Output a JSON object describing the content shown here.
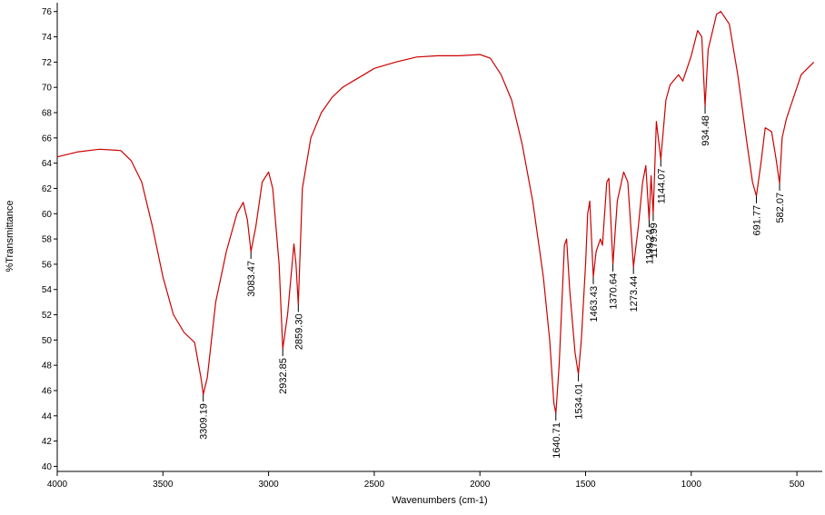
{
  "chart_data": {
    "type": "line",
    "xlabel": "Wavenumbers (cm-1)",
    "ylabel": "%Transmittance",
    "color": "#cc0000",
    "xlim": [
      4000,
      380
    ],
    "ylim": [
      39.6,
      76.7
    ],
    "xticks": [
      4000,
      3500,
      3000,
      2500,
      2000,
      1500,
      1000,
      500
    ],
    "yticks": [
      40,
      42,
      44,
      46,
      48,
      50,
      52,
      54,
      56,
      58,
      60,
      62,
      64,
      66,
      68,
      70,
      72,
      74,
      76
    ],
    "x": [
      4000,
      3900,
      3800,
      3700,
      3650,
      3600,
      3550,
      3500,
      3450,
      3400,
      3350,
      3320,
      3309.19,
      3290,
      3250,
      3200,
      3150,
      3120,
      3100,
      3083.47,
      3060,
      3030,
      3000,
      2980,
      2950,
      2932.85,
      2910,
      2880,
      2870,
      2859.3,
      2840,
      2800,
      2750,
      2700,
      2650,
      2600,
      2550,
      2500,
      2400,
      2300,
      2200,
      2100,
      2000,
      1950,
      1900,
      1850,
      1800,
      1750,
      1700,
      1670,
      1650,
      1640.71,
      1625,
      1600,
      1590,
      1575,
      1550,
      1534.01,
      1520,
      1500,
      1490,
      1480,
      1463.43,
      1450,
      1430,
      1420,
      1400,
      1390,
      1370.64,
      1350,
      1320,
      1300,
      1273.44,
      1250,
      1230,
      1215,
      1199.24,
      1190,
      1179.99,
      1165,
      1144.07,
      1120,
      1100,
      1060,
      1040,
      1000,
      970,
      950,
      934.48,
      920,
      880,
      860,
      820,
      780,
      740,
      710,
      691.77,
      670,
      650,
      620,
      600,
      582.07,
      570,
      550,
      530,
      500,
      480,
      450,
      420
    ],
    "values": [
      64.5,
      64.9,
      65.1,
      65.0,
      64.2,
      62.5,
      59,
      55,
      52,
      50.6,
      49.8,
      47,
      45.7,
      47,
      53,
      57,
      60,
      60.9,
      59.5,
      57,
      59,
      62.5,
      63.3,
      62,
      56,
      49.3,
      52,
      57.6,
      56,
      52.8,
      62,
      66,
      68,
      69.2,
      70,
      70.5,
      71,
      71.5,
      72,
      72.4,
      72.5,
      72.5,
      72.6,
      72.3,
      71,
      69,
      65.5,
      61,
      55,
      50,
      45,
      44.2,
      48,
      57.5,
      58,
      54,
      49,
      47.3,
      50,
      56,
      60,
      61,
      55,
      57,
      58,
      57.5,
      62.5,
      62.8,
      56,
      61,
      63.3,
      62.5,
      55.8,
      59,
      62.5,
      63.8,
      59.5,
      63,
      60,
      67.3,
      64.3,
      69,
      70.2,
      71,
      70.5,
      72.5,
      74.5,
      74,
      68.5,
      73,
      75.8,
      76,
      75,
      71,
      66,
      62.5,
      61.4,
      64,
      66.8,
      66.5,
      64.5,
      62.4,
      66,
      67.5,
      68.5,
      70,
      71,
      71.5,
      72
    ],
    "annotations": [
      {
        "text": "3309.19",
        "x": 3309.19,
        "y": 45.7
      },
      {
        "text": "3083.47",
        "x": 3083.47,
        "y": 57
      },
      {
        "text": "2932.85",
        "x": 2932.85,
        "y": 49.3
      },
      {
        "text": "2859.30",
        "x": 2859.3,
        "y": 52.8
      },
      {
        "text": "1640.71",
        "x": 1640.71,
        "y": 44.2
      },
      {
        "text": "1534.01",
        "x": 1534.01,
        "y": 47.3
      },
      {
        "text": "1463.43",
        "x": 1463.43,
        "y": 55
      },
      {
        "text": "1370.64",
        "x": 1370.64,
        "y": 56
      },
      {
        "text": "1273.44",
        "x": 1273.44,
        "y": 55.8
      },
      {
        "text": "1199.24",
        "x": 1199.24,
        "y": 59.5
      },
      {
        "text": "1179.99",
        "x": 1179.99,
        "y": 60
      },
      {
        "text": "1144.07",
        "x": 1144.07,
        "y": 64.3
      },
      {
        "text": "934.48",
        "x": 934.48,
        "y": 68.5
      },
      {
        "text": "691.77",
        "x": 691.77,
        "y": 61.4
      },
      {
        "text": "582.07",
        "x": 582.07,
        "y": 62.4
      }
    ]
  }
}
